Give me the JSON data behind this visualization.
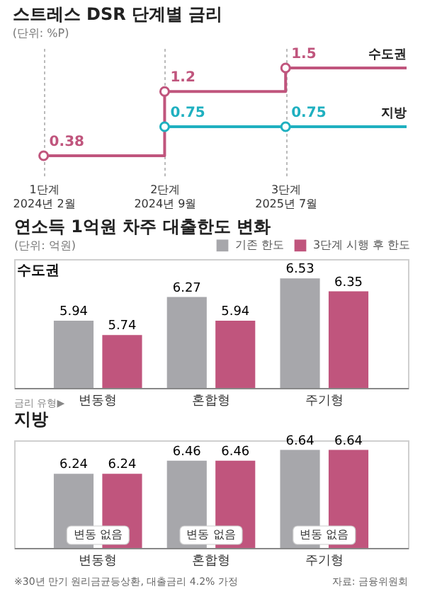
{
  "chart_data": [
    {
      "type": "step",
      "title": "스트레스 DSR 단계별 금리",
      "subtitle": "(단위: %P)",
      "categories": [
        "1단계\n2024년 2월",
        "2단계\n2024년 9월",
        "3단계\n2025년 7월",
        null
      ],
      "series": [
        {
          "name": "수도권",
          "color": "#c0557d",
          "values": [
            0.38,
            1.2,
            1.5,
            1.5
          ],
          "value_labels": [
            "0.38",
            "1.2",
            "1.5",
            null
          ]
        },
        {
          "name": "지방",
          "color": "#1fb0c0",
          "values": [
            null,
            0.75,
            0.75,
            0.75
          ],
          "value_labels": [
            null,
            "0.75",
            "0.75",
            null
          ]
        }
      ],
      "marker": "circle",
      "grid": "x",
      "legend": false
    },
    {
      "type": "bar",
      "title": "연소득 1억원 차주 대출한도 변화",
      "subtitle": "(단위: 억원)",
      "categories": [
        "변동형",
        "혼합형",
        "주기형"
      ],
      "series": [
        {
          "name": "기존 한도",
          "color": "#a7a7ab",
          "values": [
            5.94,
            6.27,
            6.53
          ]
        },
        {
          "name": "3단계 시행 후 한도",
          "color": "#c0557d",
          "values": [
            5.74,
            5.94,
            6.35
          ]
        }
      ],
      "ylim": [
        5,
        6.8
      ],
      "data_labels": true,
      "legend": "top right",
      "annotations": [
        "수도권",
        "금리 유형▶"
      ]
    },
    {
      "type": "bar",
      "title": "지방",
      "categories": [
        "변동형",
        "혼합형",
        "주기형"
      ],
      "series": [
        {
          "color": "#a7a7ab",
          "values": [
            6.24,
            6.46,
            6.64
          ]
        },
        {
          "color": "#c0557d",
          "values": [
            6.24,
            6.46,
            6.64
          ]
        }
      ],
      "ylim": [
        5,
        6.8
      ],
      "data_labels": true,
      "annotations": [
        {
          "text": "변동 없음",
          "x": "변동형"
        },
        {
          "text": "변동 없음",
          "x": "혼합형"
        },
        {
          "text": "변동 없음",
          "x": "주기형"
        },
        "※30년 만기 원리금균등상환, 대출금리 4.2% 가정",
        "자료: 금융위원회"
      ]
    }
  ]
}
